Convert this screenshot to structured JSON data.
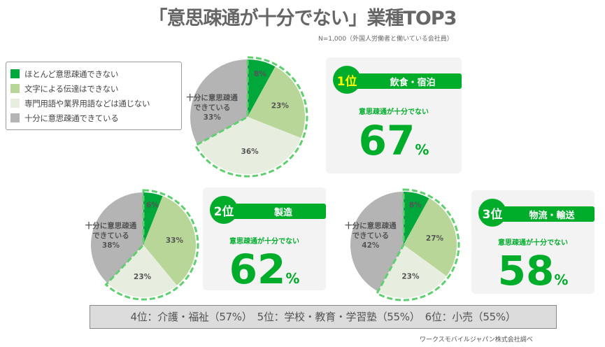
{
  "title": "「意思疎通が十分でない」業種TOP3",
  "note": "N=1,000（外国人労働者と働いている会社員）",
  "legend": [
    {
      "label": "ほとんど意思疎通できない",
      "color": "#00a83c"
    },
    {
      "label": "文字による伝達はできない",
      "color": "#b7d697"
    },
    {
      "label": "専門用語や業界用語などは通じない",
      "color": "#e7eee0"
    },
    {
      "label": "十分に意思疎通できている",
      "color": "#b4b4b4"
    }
  ],
  "chart_data": [
    {
      "type": "pie",
      "rank": "1位",
      "industry": "飲食・宿泊",
      "headline": "意思疎通が十分でない",
      "total": "67",
      "unit": "%",
      "values": [
        8,
        23,
        36,
        33
      ],
      "labels": [
        "8%",
        "23%",
        "36%",
        "十分に意思疎通|できている|33%"
      ]
    },
    {
      "type": "pie",
      "rank": "2位",
      "industry": "製造",
      "headline": "意思疎通が十分でない",
      "total": "62",
      "unit": "%",
      "values": [
        6,
        33,
        23,
        38
      ],
      "labels": [
        "6%",
        "33%",
        "23%",
        "十分に意思疎通|できている|38%"
      ]
    },
    {
      "type": "pie",
      "rank": "3位",
      "industry": "物流・輸送",
      "headline": "意思疎通が十分でない",
      "total": "58",
      "unit": "%",
      "values": [
        8,
        27,
        23,
        42
      ],
      "labels": [
        "8%",
        "27%",
        "23%",
        "十分に意思疎通|できている|42%"
      ]
    }
  ],
  "colors": {
    "accent": "#00ad2a",
    "rank1": "#ffff00",
    "dash": "#5fcf6f"
  },
  "bottom": "4位：介護・福祉（57%）　5位：学校・教育・学習塾（55%）　6位：小売（55%）",
  "credit": "ワークスモバイルジャパン株式会社調べ"
}
